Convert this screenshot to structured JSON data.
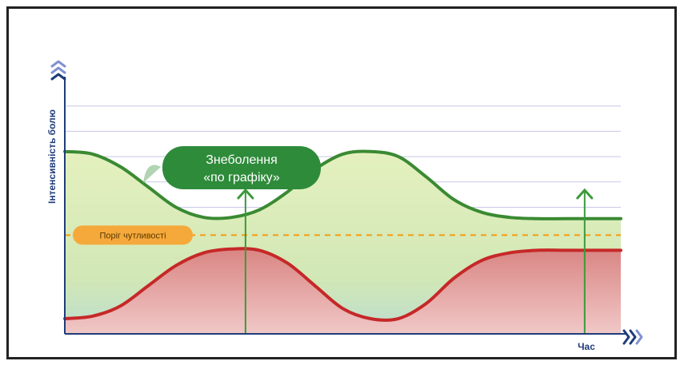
{
  "chart_data": {
    "type": "area",
    "xlabel": "Час",
    "ylabel": "Інтенсивність болю",
    "x": [
      0,
      1,
      2,
      3,
      4,
      5,
      6,
      7,
      8,
      9,
      10,
      11,
      12,
      13,
      14,
      15,
      16,
      17,
      18,
      19,
      20
    ],
    "series": [
      {
        "values": [
          7.2,
          7.1,
          6.6,
          5.8,
          5.0,
          4.6,
          4.6,
          4.9,
          5.6,
          6.5,
          7.1,
          7.2,
          7.0,
          6.2,
          5.3,
          4.8,
          4.6,
          4.55,
          4.55,
          4.55,
          4.55
        ],
        "color": "#3a8a32"
      },
      {
        "values": [
          0.6,
          0.7,
          1.1,
          1.9,
          2.7,
          3.2,
          3.35,
          3.3,
          2.8,
          1.9,
          1.0,
          0.6,
          0.6,
          1.2,
          2.2,
          2.9,
          3.2,
          3.3,
          3.3,
          3.3,
          3.3
        ],
        "color": "#c62828"
      }
    ],
    "threshold": {
      "value": 3.9,
      "label": "Поріг чутливості",
      "color": "#f39c12"
    },
    "events": [
      {
        "x": 6.5,
        "label_lines": [
          "Знеболення",
          "«по графіку»"
        ]
      },
      {
        "x": 18.7
      }
    ],
    "ylim": [
      0,
      10
    ],
    "xlim": [
      0,
      20
    ],
    "grid": true,
    "colors": {
      "axis": "#1f3d7a",
      "chevrons": "#8090d0",
      "green_fill": "#d6eaa4",
      "red_fill": "#e9a9a9",
      "bubble": "#2e8b3a",
      "gridline": "#c8c8e6"
    }
  }
}
